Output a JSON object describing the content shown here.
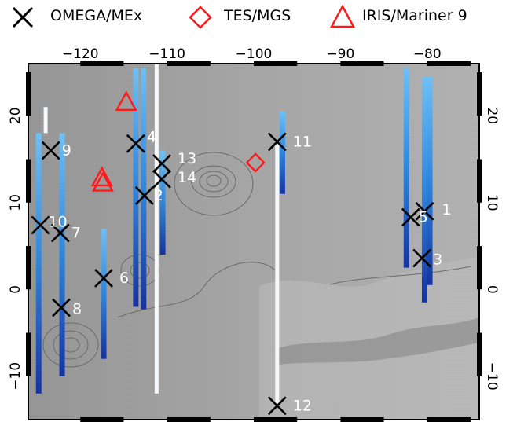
{
  "legend": {
    "omega": {
      "label": "OMEGA/MEx",
      "symbol": "x-cross",
      "color": "#000000"
    },
    "tes": {
      "label": "TES/MGS",
      "symbol": "diamond",
      "color": "#ff0000"
    },
    "iris": {
      "label": "IRIS/Mariner 9",
      "symbol": "triangle",
      "color": "#ff0000"
    }
  },
  "axes": {
    "x_ticks": [
      "−120",
      "−110",
      "−100",
      "−90",
      "−80"
    ],
    "y_ticks": [
      "20",
      "10",
      "0",
      "−10"
    ],
    "lon_range": [
      -126,
      -74
    ],
    "lat_range": [
      -15,
      26
    ]
  },
  "colors": {
    "basemap": "#9d9d9d",
    "track": "#3a8fe0",
    "track_dark": "#1a3fa0",
    "cross": "#000000",
    "label": "#ffffff",
    "marker_red": "#ff1a1a"
  },
  "chart_data": {
    "type": "scatter",
    "xlabel": "",
    "ylabel": "",
    "xlim": [
      -126,
      -74
    ],
    "ylim": [
      -15,
      26
    ],
    "series": [
      {
        "name": "OMEGA/MEx",
        "marker": "x",
        "points": [
          {
            "id": "1",
            "x": -80.3,
            "y": 9.0
          },
          {
            "id": "2",
            "x": -112.6,
            "y": 10.8
          },
          {
            "id": "3",
            "x": -80.6,
            "y": 3.6
          },
          {
            "id": "4",
            "x": -113.6,
            "y": 16.8
          },
          {
            "id": "5",
            "x": -81.9,
            "y": 8.3
          },
          {
            "id": "6",
            "x": -117.3,
            "y": 1.3
          },
          {
            "id": "7",
            "x": -122.3,
            "y": 6.5
          },
          {
            "id": "8",
            "x": -122.2,
            "y": -2.1
          },
          {
            "id": "9",
            "x": -123.4,
            "y": 16.0
          },
          {
            "id": "10",
            "x": -124.6,
            "y": 7.4
          },
          {
            "id": "11",
            "x": -97.3,
            "y": 17.0
          },
          {
            "id": "12",
            "x": -97.3,
            "y": -13.4
          },
          {
            "id": "13",
            "x": -110.6,
            "y": 14.5
          },
          {
            "id": "14",
            "x": -110.6,
            "y": 12.7
          }
        ]
      },
      {
        "name": "TES/MGS",
        "marker": "diamond",
        "points": [
          {
            "x": -99.8,
            "y": 14.6
          }
        ]
      },
      {
        "name": "IRIS/Mariner 9",
        "marker": "triangle",
        "points": [
          {
            "x": -114.7,
            "y": 21.6
          },
          {
            "x": -117.5,
            "y": 12.9
          },
          {
            "x": -117.4,
            "y": 12.3
          }
        ]
      }
    ],
    "tracks": [
      {
        "lon": -124.8,
        "lat_start": 18.0,
        "lat_end": -12.0,
        "style": "blue"
      },
      {
        "lon": -124.0,
        "lat_start": 21.0,
        "lat_end": 18.0,
        "style": "white"
      },
      {
        "lon": -122.1,
        "lat_start": 18.0,
        "lat_end": -10.0,
        "style": "blue"
      },
      {
        "lon": -117.3,
        "lat_start": 7.0,
        "lat_end": -8.0,
        "style": "blue"
      },
      {
        "lon": -113.6,
        "lat_start": 25.5,
        "lat_end": -2.0,
        "style": "blue"
      },
      {
        "lon": -112.7,
        "lat_start": 25.5,
        "lat_end": -2.3,
        "style": "blue"
      },
      {
        "lon": -111.2,
        "lat_start": 26.0,
        "lat_end": -12.0,
        "style": "white"
      },
      {
        "lon": -110.5,
        "lat_start": 16.0,
        "lat_end": 4.0,
        "style": "blue"
      },
      {
        "lon": -97.3,
        "lat_start": 17.0,
        "lat_end": -13.4,
        "style": "white"
      },
      {
        "lon": -96.7,
        "lat_start": 20.5,
        "lat_end": 11.0,
        "style": "blue"
      },
      {
        "lon": -82.4,
        "lat_start": 25.5,
        "lat_end": 2.5,
        "style": "blue"
      },
      {
        "lon": -80.3,
        "lat_start": 24.5,
        "lat_end": -1.5,
        "style": "blue"
      },
      {
        "lon": -79.7,
        "lat_start": 24.5,
        "lat_end": 0.5,
        "style": "blue"
      }
    ]
  }
}
